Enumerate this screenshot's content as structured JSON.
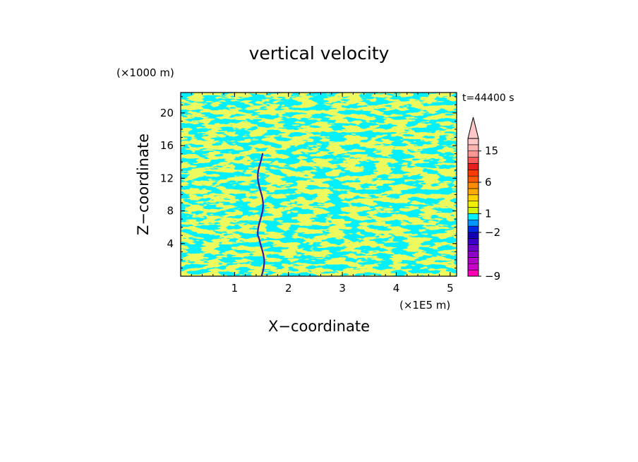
{
  "chart_data": {
    "type": "heatmap",
    "title": "vertical velocity",
    "xlabel": "X−coordinate",
    "ylabel": "Z−coordinate",
    "x_unit": "(×1E5 m)",
    "y_unit": "(×1000 m)",
    "time_label": "t=44400 s",
    "xlim": [
      0,
      5.12
    ],
    "ylim": [
      0,
      22.5
    ],
    "x_ticks": [
      1,
      2,
      3,
      4,
      5
    ],
    "x_tick_labels": [
      "1",
      "2",
      "3",
      "4",
      "5"
    ],
    "y_ticks": [
      4,
      8,
      12,
      16,
      20
    ],
    "y_tick_labels": [
      "4",
      "8",
      "12",
      "16",
      "20"
    ],
    "colors": {
      "positive_weak": "#d9f21c",
      "negative_weak": "#00f0ff",
      "downdraft_core": "#3a1aa0"
    },
    "colorbar": {
      "levels": [
        -9,
        -8,
        -7,
        -6,
        -5,
        -4,
        -3,
        -2,
        -1,
        0,
        1,
        2,
        3,
        4,
        5,
        6,
        7,
        8,
        10,
        12,
        15,
        18,
        22
      ],
      "colors": [
        "#ff00b4",
        "#c800c8",
        "#b000c8",
        "#8c00c8",
        "#6e00c8",
        "#3c00c8",
        "#1400b4",
        "#0028e6",
        "#0096ff",
        "#00f0ff",
        "#d2f20a",
        "#f0f000",
        "#ffd200",
        "#ffaa00",
        "#ff8c00",
        "#ff5a00",
        "#ff3c00",
        "#e61e1e",
        "#ff5a5a",
        "#ff9696",
        "#ffb4b4",
        "#ffc8c8"
      ],
      "labels": [
        "15",
        "6",
        "1",
        "−2",
        "−9"
      ],
      "label_values": [
        15,
        6,
        1,
        -2,
        -9
      ],
      "extend": "max"
    }
  }
}
